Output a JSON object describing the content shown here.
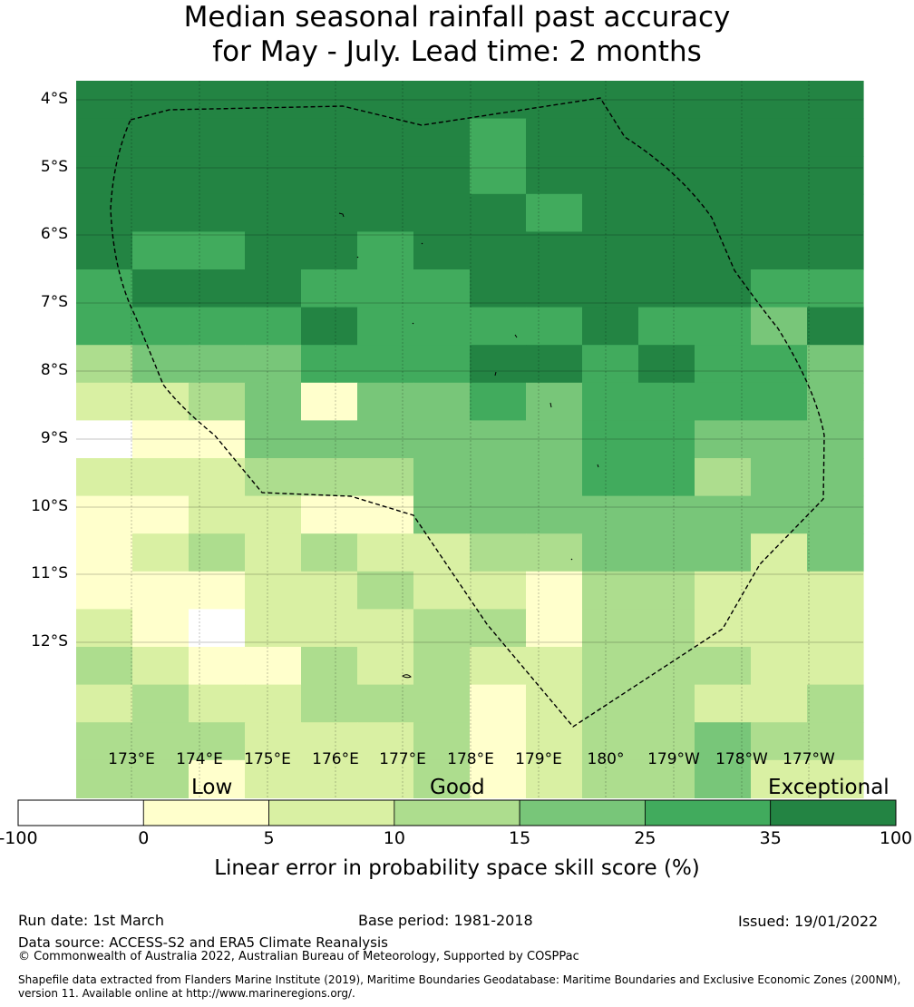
{
  "title": {
    "line1": "Median seasonal rainfall past accuracy",
    "line2": "for May - July. Lead time: 2 months"
  },
  "axes": {
    "lat_labels": [
      "4°S",
      "5°S",
      "6°S",
      "7°S",
      "8°S",
      "9°S",
      "10°S",
      "11°S",
      "12°S"
    ],
    "lon_labels": [
      "173°E",
      "174°E",
      "175°E",
      "176°E",
      "177°E",
      "178°E",
      "179°E",
      "180°",
      "179°W",
      "178°W",
      "177°W"
    ]
  },
  "colorbar": {
    "categories": {
      "low": "Low",
      "good": "Good",
      "exceptional": "Exceptional"
    },
    "ticks": [
      "-100",
      "0",
      "5",
      "10",
      "15",
      "25",
      "35",
      "100"
    ],
    "colors": [
      "#ffffff",
      "#ffffcc",
      "#d9f0a3",
      "#addd8e",
      "#78c679",
      "#41ab5d",
      "#238443"
    ],
    "title": "Linear error in probability space skill score (%)"
  },
  "grid": {
    "comment_levels": "0=-100..0 white, 1=0..5, 2=5..10, 3=10..15, 4=15..25, 5=25..35, 6=35..100",
    "rows": [
      [
        6,
        6,
        6,
        6,
        6,
        6,
        6,
        6,
        6,
        6,
        6,
        6,
        6,
        6
      ],
      [
        6,
        6,
        6,
        6,
        6,
        6,
        6,
        5,
        6,
        6,
        6,
        6,
        6,
        6
      ],
      [
        6,
        6,
        6,
        6,
        6,
        6,
        6,
        5,
        6,
        6,
        6,
        6,
        6,
        6
      ],
      [
        6,
        6,
        6,
        6,
        6,
        6,
        6,
        6,
        5,
        6,
        6,
        6,
        6,
        6
      ],
      [
        6,
        5,
        5,
        6,
        6,
        5,
        6,
        6,
        6,
        6,
        6,
        6,
        6,
        6
      ],
      [
        5,
        6,
        6,
        6,
        5,
        5,
        5,
        6,
        6,
        6,
        6,
        6,
        5,
        5
      ],
      [
        5,
        5,
        5,
        5,
        6,
        5,
        5,
        5,
        5,
        6,
        5,
        5,
        4,
        6
      ],
      [
        3,
        4,
        4,
        4,
        5,
        5,
        5,
        6,
        6,
        5,
        6,
        5,
        5,
        4
      ],
      [
        2,
        2,
        3,
        4,
        1,
        4,
        4,
        5,
        4,
        5,
        5,
        5,
        5,
        4
      ],
      [
        0,
        1,
        1,
        4,
        4,
        4,
        4,
        4,
        4,
        5,
        5,
        4,
        4,
        4
      ],
      [
        2,
        2,
        2,
        3,
        3,
        3,
        4,
        4,
        4,
        5,
        5,
        3,
        4,
        4
      ],
      [
        1,
        1,
        2,
        2,
        1,
        1,
        4,
        4,
        4,
        4,
        4,
        4,
        4,
        4
      ],
      [
        1,
        2,
        3,
        2,
        3,
        2,
        2,
        3,
        3,
        4,
        4,
        4,
        2,
        4
      ],
      [
        1,
        1,
        1,
        2,
        2,
        3,
        2,
        2,
        1,
        3,
        3,
        2,
        2,
        2
      ],
      [
        2,
        1,
        0,
        2,
        2,
        2,
        3,
        3,
        1,
        3,
        3,
        2,
        2,
        2
      ],
      [
        3,
        2,
        1,
        1,
        3,
        2,
        3,
        2,
        2,
        3,
        3,
        3,
        2,
        2
      ],
      [
        2,
        3,
        2,
        2,
        3,
        3,
        3,
        1,
        2,
        3,
        3,
        2,
        2,
        3
      ],
      [
        3,
        3,
        3,
        2,
        2,
        2,
        3,
        1,
        2,
        3,
        3,
        4,
        3,
        3
      ],
      [
        3,
        3,
        1,
        2,
        2,
        2,
        3,
        1,
        2,
        3,
        3,
        4,
        2,
        2
      ]
    ]
  },
  "footer": {
    "run_date": "Run date: 1st March",
    "base_period": "Base period: 1981-2018",
    "issued": "Issued: 19/01/2022",
    "data_source": "Data source: ACCESS-S2 and ERA5 Climate Reanalysis",
    "copyright": "© Commonwealth of Australia 2022, Australian Bureau of Meteorology, Supported by COSPPac",
    "shapefile_line1": "Shapefile data extracted from Flanders Marine Institute (2019), Maritime Boundaries Geodatabase: Maritime Boundaries and Exclusive Economic Zones (200NM),",
    "shapefile_line2": "version 11. Available online at http://www.marineregions.org/."
  }
}
